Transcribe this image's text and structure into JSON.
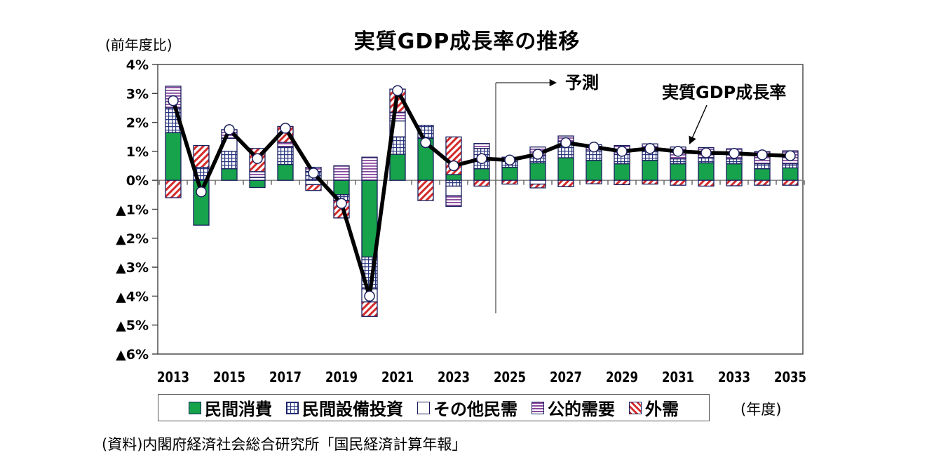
{
  "title": "実質GDP成長率の推移",
  "y_axis_unit": "(前年度比)",
  "x_axis_unit": "(年度)",
  "source": "(資料)内閣府経済社会総合研究所「国民経済計算年報」",
  "annotations": {
    "forecast_label": "予測",
    "line_label": "実質GDP成長率"
  },
  "legend": {
    "items": [
      {
        "label": "民間消費",
        "series_key": "private_consumption",
        "swatch": "solid-green"
      },
      {
        "label": "民間設備投資",
        "series_key": "private_capex",
        "swatch": "blue-grid"
      },
      {
        "label": "その他民需",
        "series_key": "other_private_demand",
        "swatch": "white"
      },
      {
        "label": "公的需要",
        "series_key": "public_demand",
        "swatch": "purple-hstripes"
      },
      {
        "label": "外需",
        "series_key": "external_demand",
        "swatch": "red-diagonal"
      }
    ]
  },
  "colors": {
    "consumption_green": "#17a24c",
    "capex_grid_blue": "#27357e",
    "public_purple": "#8a4a9e",
    "external_red": "#d42a2a",
    "gdp_line": "#000000",
    "marker_fill": "#ffffff",
    "axis_gray": "#7f7f7f"
  },
  "chart_data": {
    "type": "bar",
    "subtype": "stacked-bars-with-line",
    "x": [
      2013,
      2014,
      2015,
      2016,
      2017,
      2018,
      2019,
      2020,
      2021,
      2022,
      2023,
      2024,
      2025,
      2026,
      2027,
      2028,
      2029,
      2030,
      2031,
      2032,
      2033,
      2034,
      2035
    ],
    "series": [
      {
        "name": "民間消費",
        "key": "private_consumption",
        "pattern": "solid-green",
        "values": [
          1.65,
          -1.55,
          0.4,
          -0.25,
          0.55,
          0,
          -0.5,
          -2.65,
          0.9,
          1.45,
          0.2,
          0.4,
          0.45,
          0.6,
          0.78,
          0.69,
          0.57,
          0.69,
          0.57,
          0.6,
          0.57,
          0.4,
          0.43
        ]
      },
      {
        "name": "民間設備投資",
        "key": "private_capex",
        "pattern": "blue-grid",
        "values": [
          0.85,
          0.45,
          0.6,
          0,
          0.6,
          0.3,
          -0.2,
          -1.1,
          0.6,
          0.45,
          -0.2,
          0.7,
          0.25,
          0.25,
          0.55,
          0.33,
          0.33,
          0.3,
          0.17,
          0.18,
          0.17,
          0.17,
          0.14
        ]
      },
      {
        "name": "その他民需",
        "key": "other_private_demand",
        "pattern": "white",
        "values": [
          0,
          0,
          0.45,
          0.1,
          0,
          -0.15,
          0,
          -0.45,
          0.55,
          0,
          -0.33,
          0,
          0,
          -0.13,
          0,
          0,
          0,
          0,
          0,
          0,
          0,
          0,
          0
        ]
      },
      {
        "name": "公的需要",
        "key": "public_demand",
        "pattern": "purple-hstripes",
        "values": [
          0.75,
          0,
          0.3,
          0.2,
          0.16,
          0.15,
          0.5,
          0.8,
          0.3,
          0,
          -0.37,
          0.17,
          0.1,
          0.3,
          0.2,
          0.21,
          0.3,
          0.27,
          0.41,
          0.35,
          0.35,
          0.42,
          0.45
        ]
      },
      {
        "name": "外需",
        "key": "external_demand",
        "pattern": "red-diagonal",
        "values": [
          -0.6,
          0.75,
          0,
          0.8,
          0.55,
          -0.2,
          -0.6,
          -0.5,
          0.8,
          -0.7,
          1.3,
          -0.2,
          -0.13,
          -0.13,
          -0.22,
          -0.12,
          -0.15,
          -0.13,
          -0.17,
          -0.2,
          -0.19,
          -0.17,
          -0.17
        ]
      }
    ],
    "line": {
      "name": "実質GDP成長率",
      "values": [
        2.75,
        -0.4,
        1.75,
        0.75,
        1.8,
        0.25,
        -0.8,
        -4.0,
        3.1,
        1.3,
        0.5,
        0.75,
        0.7,
        0.9,
        1.3,
        1.15,
        1.0,
        1.1,
        1.0,
        0.95,
        0.93,
        0.88,
        0.85
      ]
    },
    "forecast_divider_after": 2024,
    "ylim": [
      -6,
      4
    ],
    "y_tick_labels": [
      "4%",
      "3%",
      "2%",
      "1%",
      "0%",
      "▲1%",
      "▲2%",
      "▲3%",
      "▲4%",
      "▲5%",
      "▲6%"
    ],
    "y_tick_values": [
      4,
      3,
      2,
      1,
      0,
      -1,
      -2,
      -3,
      -4,
      -5,
      -6
    ],
    "x_tick_labels": [
      "2013",
      "2015",
      "2017",
      "2019",
      "2021",
      "2023",
      "2025",
      "2027",
      "2029",
      "2031",
      "2033",
      "2035"
    ],
    "grid": "zero-line-only",
    "legend_position": "bottom"
  }
}
